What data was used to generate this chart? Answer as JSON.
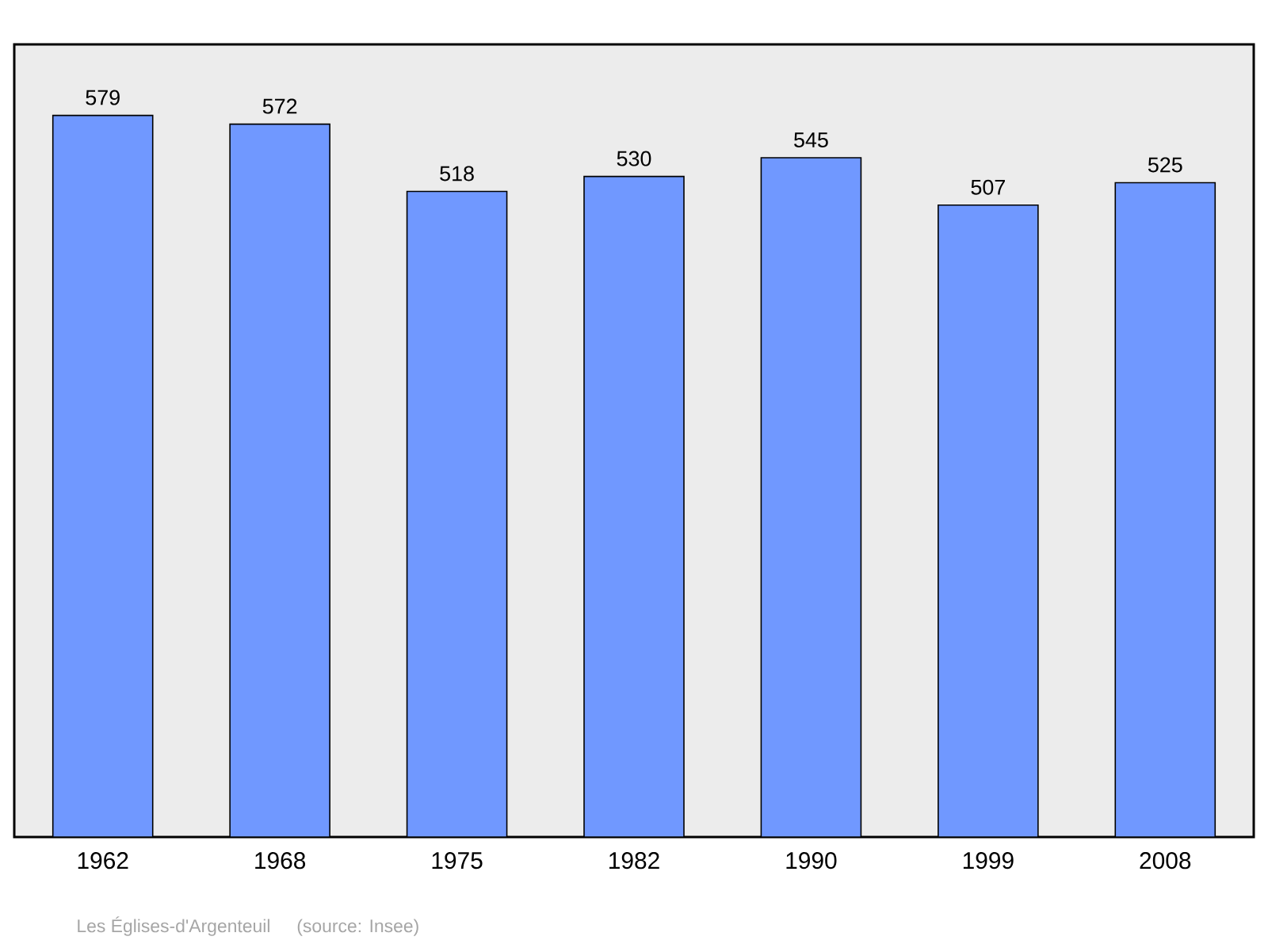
{
  "chart_data": {
    "type": "bar",
    "categories": [
      "1962",
      "1968",
      "1975",
      "1982",
      "1990",
      "1999",
      "2008"
    ],
    "values": [
      579,
      572,
      518,
      530,
      545,
      507,
      525
    ],
    "color": "#7098ff",
    "ylim": [
      0,
      636
    ],
    "data_labels": true,
    "annotations": [
      "Les Églises-d'Argenteuil",
      "(source: Insee)"
    ]
  }
}
